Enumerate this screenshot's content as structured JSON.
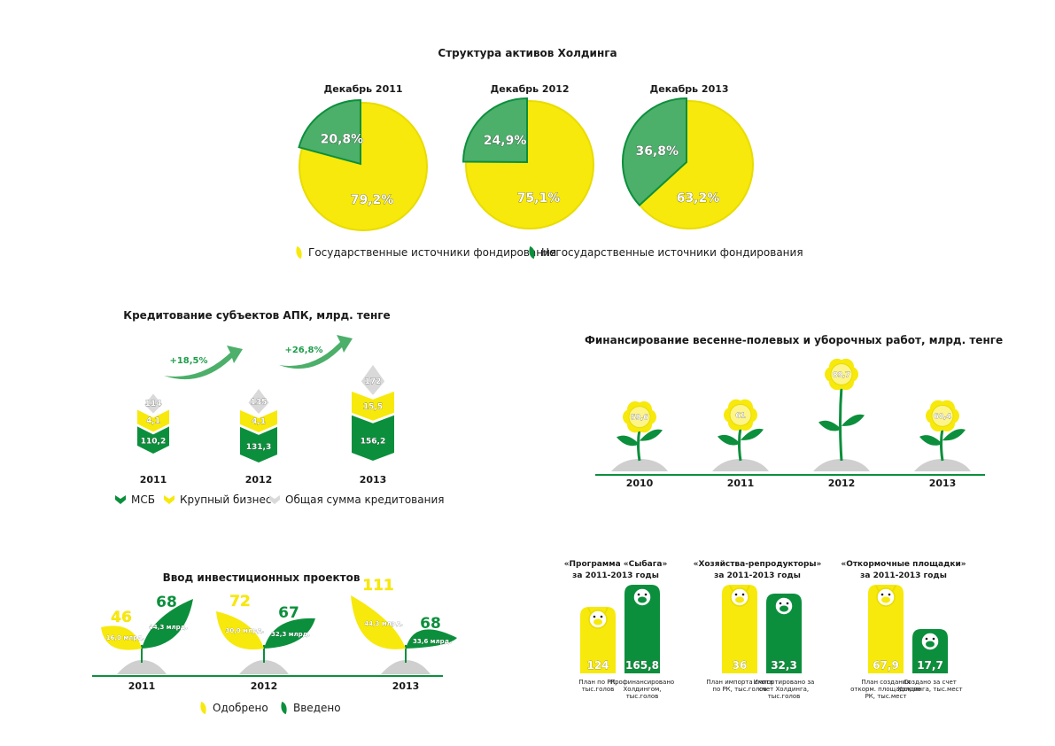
{
  "colors": {
    "yellow": "#f7e90b",
    "green": "#0c8f3c",
    "mid_green": "#4caf6a",
    "grey": "#d9d9d9",
    "light_yellow": "#fdf48a"
  },
  "assets": {
    "title": "Структура активов Холдинга",
    "legend": [
      "Государственные источники фондирования",
      "Негосударственные источники фондирования"
    ]
  },
  "credit": {
    "title": "Кредитование субъектов АПК, млрд. тенге",
    "growth": [
      "+18,5%",
      "+26,8%"
    ],
    "legend": [
      "МСБ",
      "Крупный бизнес",
      "Общая сумма кредитования"
    ]
  },
  "spring": {
    "title": "Финансирование весенне-полевых и уборочных работ, млрд. тенге"
  },
  "invest": {
    "title": "Ввод инвестиционных проектов",
    "legend": [
      "Одобрено",
      "Введено"
    ],
    "plants": [
      {
        "year": "2011",
        "approved": "46",
        "approved_sum": "16,0 млрд.",
        "entered": "68",
        "entered_sum": "44,3 млрд."
      },
      {
        "year": "2012",
        "approved": "72",
        "approved_sum": "30,0 млрд.",
        "entered": "67",
        "entered_sum": "32,3 млрд."
      },
      {
        "year": "2013",
        "approved": "111",
        "approved_sum": "44,3 млрд.",
        "entered": "68",
        "entered_sum": "33,6 млрд."
      }
    ]
  },
  "programs": [
    {
      "title": "«Программа «Сыбага»",
      "period": "за 2011-2013 годы",
      "plan": "124",
      "plan_label": "План по РК, тыс.голов",
      "fact": "165,8",
      "fact_label": "Профинансировано Холдингом, тыс.голов",
      "plan_frac": 0.75,
      "fact_frac": 1.0
    },
    {
      "title": "«Хозяйства-репродукторы»",
      "period": "за 2011-2013 годы",
      "plan": "36",
      "plan_label": "План импорта скота по РК, тыс.голов",
      "fact": "32,3",
      "fact_label": "Импортировано за счет Холдинга, тыс.голов",
      "plan_frac": 1.0,
      "fact_frac": 0.9
    },
    {
      "title": "«Откормочные площадки»",
      "period": "за 2011-2013 годы",
      "plan": "67,9",
      "plan_label": "План создания откорм. площадок по РК, тыс.мест",
      "fact": "17,7",
      "fact_label": "Создано за счет Холдинга, тыс.мест",
      "plan_frac": 1.0,
      "fact_frac": 0.5
    }
  ],
  "chart_data": [
    {
      "type": "pie",
      "title": "Структура активов Холдинга",
      "series_names": [
        "Государственные источники фондирования",
        "Негосударственные источники фондирования"
      ],
      "pies": [
        {
          "label": "Декабрь 2011",
          "values": [
            79.2,
            20.8
          ],
          "labels": [
            "79,2%",
            "20,8%"
          ]
        },
        {
          "label": "Декабрь 2012",
          "values": [
            75.1,
            24.9
          ],
          "labels": [
            "75,1%",
            "24,9%"
          ]
        },
        {
          "label": "Декабрь 2013",
          "values": [
            63.2,
            36.8
          ],
          "labels": [
            "63,2%",
            "36,8%"
          ]
        }
      ]
    },
    {
      "type": "bar",
      "title": "Кредитование субъектов АПК, млрд. тенге",
      "categories": [
        "2011",
        "2012",
        "2013"
      ],
      "series": [
        {
          "name": "МСБ",
          "values": [
            110.2,
            131.3,
            156.2
          ],
          "labels": [
            "110,2",
            "131,3",
            "156,2"
          ]
        },
        {
          "name": "Крупный бизнес",
          "values": [
            4.1,
            4.1,
            15.5
          ],
          "labels": [
            "4,1",
            "4,1",
            "15,5"
          ]
        },
        {
          "name": "Общая сумма кредитования",
          "values": [
            114,
            135,
            172
          ],
          "labels": [
            "114",
            "135",
            "172"
          ]
        }
      ]
    },
    {
      "type": "bar",
      "title": "Финансирование весенне-полевых и уборочных работ, млрд. тенге",
      "categories": [
        "2010",
        "2011",
        "2012",
        "2013"
      ],
      "values": [
        59.6,
        61,
        89.7,
        60.4
      ],
      "labels": [
        "59,6",
        "61",
        "89,7",
        "60,4"
      ]
    },
    {
      "type": "bar",
      "title": "Ввод инвестиционных проектов",
      "categories": [
        "2011",
        "2012",
        "2013"
      ],
      "series": [
        {
          "name": "Одобрено",
          "values": [
            46,
            72,
            111
          ]
        },
        {
          "name": "Введено",
          "values": [
            68,
            67,
            68
          ]
        }
      ]
    }
  ]
}
